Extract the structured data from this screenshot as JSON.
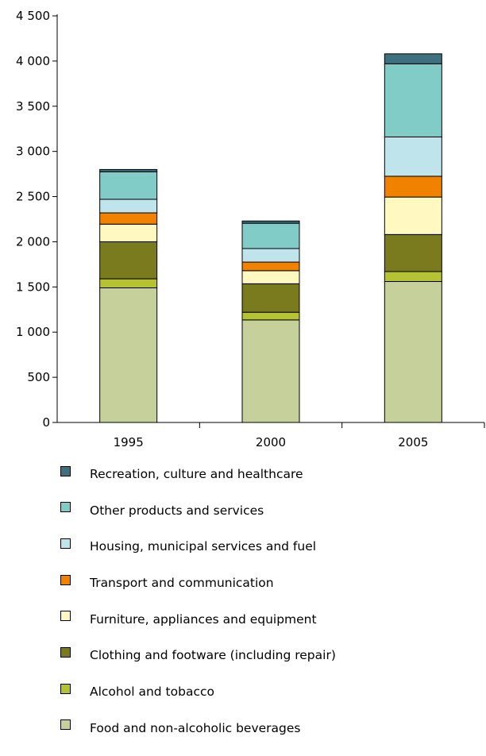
{
  "chart_data": {
    "type": "bar",
    "stacked": true,
    "categories": [
      "1995",
      "2000",
      "2005"
    ],
    "ylim": [
      0,
      4500
    ],
    "yticks": [
      0,
      500,
      1000,
      1500,
      2000,
      2500,
      3000,
      3500,
      4000,
      4500
    ],
    "ytick_labels": [
      "0",
      "500",
      "1 000",
      "1 500",
      "2 000",
      "2 500",
      "3 000",
      "3 500",
      "4 000",
      "4 500"
    ],
    "grid": false,
    "legend_position": "bottom",
    "series": [
      {
        "name": "Food and non-alcoholic beverages",
        "color": "#c5d09a",
        "values": [
          1490,
          1135,
          1560
        ]
      },
      {
        "name": "Alcohol and tobacco",
        "color": "#b5c234",
        "values": [
          100,
          85,
          110
        ]
      },
      {
        "name": "Clothing and footware (including repair)",
        "color": "#7a7a1f",
        "values": [
          410,
          315,
          410
        ]
      },
      {
        "name": "Furniture, appliances and equipment",
        "color": "#fff8c0",
        "values": [
          195,
          145,
          415
        ]
      },
      {
        "name": "Transport and communication",
        "color": "#f08200",
        "values": [
          125,
          95,
          230
        ]
      },
      {
        "name": "Housing, municipal services and fuel",
        "color": "#c0e4ec",
        "values": [
          150,
          150,
          435
        ]
      },
      {
        "name": "Other products and services",
        "color": "#82ccc8",
        "values": [
          305,
          280,
          810
        ]
      },
      {
        "name": "Recreation, culture and healthcare",
        "color": "#3f7080",
        "values": [
          25,
          25,
          110
        ]
      }
    ]
  }
}
